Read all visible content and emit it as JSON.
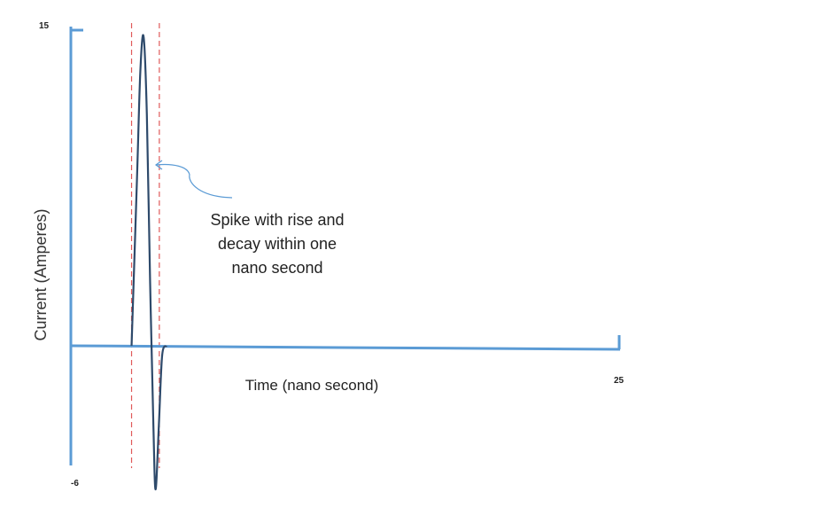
{
  "chart_data": {
    "type": "line",
    "title": "",
    "xlabel": "Time (nano second)",
    "ylabel": "Current (Amperes)",
    "xlim": [
      0,
      25
    ],
    "ylim": [
      -6,
      15
    ],
    "y_max_label": "15",
    "y_min_label": "-6",
    "x_max_label": "25",
    "grid": false,
    "legend": "none",
    "series": [
      {
        "x": [
          2.7,
          2.95,
          3.1,
          3.25,
          3.4,
          3.55,
          3.7,
          3.8,
          3.95,
          4.1,
          4.3
        ],
        "values": [
          0,
          8,
          13,
          14.7,
          11,
          3,
          -4,
          -7.2,
          -4,
          -0.5,
          0
        ]
      }
    ],
    "markers": {
      "window_start": 2.7,
      "window_end": 3.85
    },
    "annotation": {
      "lines": [
        "Spike with rise and",
        "decay within one",
        "nano second"
      ]
    },
    "colors": {
      "axis": "#5b9bd5",
      "curve": "#2e4a6b",
      "window": "#e05a5a",
      "arrow": "#5b9bd5"
    }
  }
}
